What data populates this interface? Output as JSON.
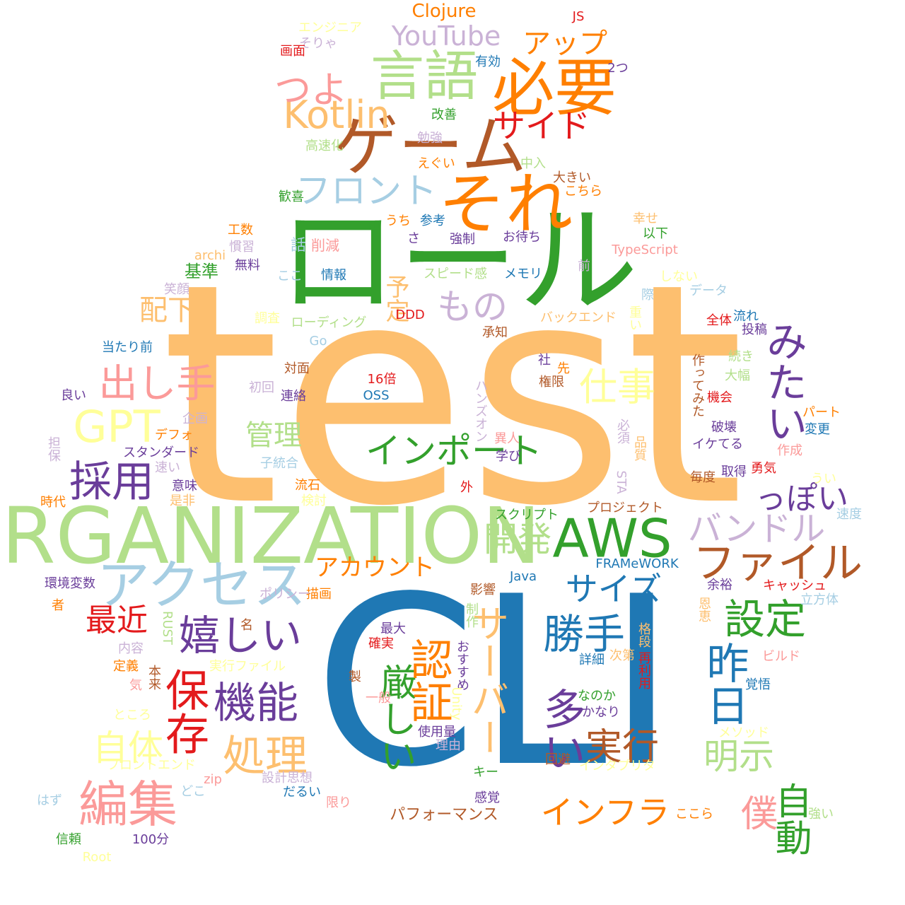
{
  "words": [
    {
      "text": "test",
      "color": "#fdbf6f"
    },
    {
      "text": "CLI",
      "color": "#1f78b4"
    },
    {
      "text": "ロール",
      "color": "#33a02c"
    },
    {
      "text": "ORGANIZATION",
      "color": "#b2df8a"
    },
    {
      "text": "それ",
      "color": "#ff7f00"
    },
    {
      "text": "ゲーム",
      "color": "#b15928"
    },
    {
      "text": "必要",
      "color": "#ff7f00"
    },
    {
      "text": "言語",
      "color": "#b2df8a"
    },
    {
      "text": "アクセス",
      "color": "#a6cee3"
    },
    {
      "text": "AWS",
      "color": "#33a02c"
    },
    {
      "text": "Kotlin",
      "color": "#fdbf6f"
    },
    {
      "text": "GPT",
      "color": "#ffff99"
    },
    {
      "text": "つよ",
      "color": "#fb9a99"
    },
    {
      "text": "サイド",
      "color": "#e31a1c"
    },
    {
      "text": "アップ",
      "color": "#ff7f00"
    },
    {
      "text": "YouTube",
      "color": "#cab2d6"
    },
    {
      "text": "Clojure",
      "color": "#ff7f00"
    },
    {
      "text": "フロント",
      "color": "#a6cee3"
    },
    {
      "text": "もの",
      "color": "#cab2d6"
    },
    {
      "text": "インポート",
      "color": "#33a02c"
    },
    {
      "text": "出し手",
      "color": "#fb9a99"
    },
    {
      "text": "採用",
      "color": "#6a3d9a"
    },
    {
      "text": "仕事",
      "color": "#ffff99"
    },
    {
      "text": "みたい",
      "color": "#6a3d9a"
    },
    {
      "text": "ファイル",
      "color": "#b15928"
    },
    {
      "text": "バンドル",
      "color": "#cab2d6"
    },
    {
      "text": "っぽい",
      "color": "#6a3d9a"
    },
    {
      "text": "開発",
      "color": "#b2df8a"
    },
    {
      "text": "サイズ",
      "color": "#1f78b4"
    },
    {
      "text": "設定",
      "color": "#33a02c"
    },
    {
      "text": "嬉しい",
      "color": "#6a3d9a"
    },
    {
      "text": "勝手",
      "color": "#1f78b4"
    },
    {
      "text": "保存",
      "color": "#e31a1c"
    },
    {
      "text": "機能",
      "color": "#6a3d9a"
    },
    {
      "text": "編集",
      "color": "#fb9a99"
    },
    {
      "text": "処理",
      "color": "#fdbf6f"
    },
    {
      "text": "自体",
      "color": "#ffff99"
    },
    {
      "text": "厳しい",
      "color": "#33a02c"
    },
    {
      "text": "認証",
      "color": "#ff7f00"
    },
    {
      "text": "サーバー",
      "color": "#fdbf6f"
    },
    {
      "text": "多い",
      "color": "#6a3d9a"
    },
    {
      "text": "実行",
      "color": "#b15928"
    },
    {
      "text": "昨日",
      "color": "#1f78b4"
    },
    {
      "text": "明示",
      "color": "#b2df8a"
    },
    {
      "text": "インフラ",
      "color": "#ff7f00"
    },
    {
      "text": "僕",
      "color": "#fb9a99"
    },
    {
      "text": "自動",
      "color": "#33a02c"
    },
    {
      "text": "最近",
      "color": "#e31a1c"
    },
    {
      "text": "アカウント",
      "color": "#ff7f00"
    },
    {
      "text": "管理",
      "color": "#b2df8a"
    },
    {
      "text": "配下",
      "color": "#fdbf6f"
    },
    {
      "text": "予定",
      "color": "#fdbf6f"
    },
    {
      "text": "基準",
      "color": "#33a02c"
    },
    {
      "text": "話",
      "color": "#a6cee3"
    },
    {
      "text": "削減",
      "color": "#fb9a99"
    },
    {
      "text": "中",
      "color": "#33a02c"
    },
    {
      "text": "うち",
      "color": "#ff7f00"
    },
    {
      "text": "参考",
      "color": "#1f78b4"
    },
    {
      "text": "さ",
      "color": "#6a3d9a"
    },
    {
      "text": "強制",
      "color": "#6a3d9a"
    },
    {
      "text": "お待ち",
      "color": "#6a3d9a"
    },
    {
      "text": "スピード感",
      "color": "#b2df8a"
    },
    {
      "text": "メモリ",
      "color": "#1f78b4"
    },
    {
      "text": "TypeScript",
      "color": "#fb9a99"
    },
    {
      "text": "前",
      "color": "#cab2d6"
    },
    {
      "text": "しない",
      "color": "#ffff99"
    },
    {
      "text": "データ",
      "color": "#a6cee3"
    },
    {
      "text": "際",
      "color": "#a6cee3"
    },
    {
      "text": "重い",
      "color": "#ffff99"
    },
    {
      "text": "全体",
      "color": "#e31a1c"
    },
    {
      "text": "流れ",
      "color": "#1f78b4"
    },
    {
      "text": "投稿",
      "color": "#6a3d9a"
    },
    {
      "text": "続き",
      "color": "#b2df8a"
    },
    {
      "text": "大幅",
      "color": "#b2df8a"
    },
    {
      "text": "機会",
      "color": "#e31a1c"
    },
    {
      "text": "作ってみた",
      "color": "#b15928"
    },
    {
      "text": "パート",
      "color": "#ff7f00"
    },
    {
      "text": "変更",
      "color": "#1f78b4"
    },
    {
      "text": "破壊",
      "color": "#6a3d9a"
    },
    {
      "text": "作成",
      "color": "#fb9a99"
    },
    {
      "text": "イケてる",
      "color": "#6a3d9a"
    },
    {
      "text": "うい",
      "color": "#ffff99"
    },
    {
      "text": "毎度",
      "color": "#b15928"
    },
    {
      "text": "勇気",
      "color": "#e31a1c"
    },
    {
      "text": "取得",
      "color": "#6a3d9a"
    },
    {
      "text": "速度",
      "color": "#a6cee3"
    },
    {
      "text": "ローディング",
      "color": "#b2df8a"
    },
    {
      "text": "バックエンド",
      "color": "#fdbf6f"
    },
    {
      "text": "DDD",
      "color": "#e31a1c"
    },
    {
      "text": "承知",
      "color": "#b15928"
    },
    {
      "text": "Go",
      "color": "#a6cee3"
    },
    {
      "text": "調査",
      "color": "#ffff99"
    },
    {
      "text": "笑顔",
      "color": "#cab2d6"
    },
    {
      "text": "ここ",
      "color": "#a6cee3"
    },
    {
      "text": "情報",
      "color": "#1f78b4"
    },
    {
      "text": "archi",
      "color": "#fdbf6f"
    },
    {
      "text": "慣習",
      "color": "#cab2d6"
    },
    {
      "text": "工数",
      "color": "#ff7f00"
    },
    {
      "text": "無料",
      "color": "#6a3d9a"
    },
    {
      "text": "歓喜",
      "color": "#33a02c"
    },
    {
      "text": "当たり前",
      "color": "#1f78b4"
    },
    {
      "text": "16倍",
      "color": "#e31a1c"
    },
    {
      "text": "OSS",
      "color": "#1f78b4"
    },
    {
      "text": "初回",
      "color": "#cab2d6"
    },
    {
      "text": "対面",
      "color": "#b15928"
    },
    {
      "text": "連絡",
      "color": "#6a3d9a"
    },
    {
      "text": "ハンズオン",
      "color": "#cab2d6"
    },
    {
      "text": "社",
      "color": "#6a3d9a"
    },
    {
      "text": "先",
      "color": "#ff7f00"
    },
    {
      "text": "権限",
      "color": "#b15928"
    },
    {
      "text": "良い",
      "color": "#6a3d9a"
    },
    {
      "text": "企画",
      "color": "#cab2d6"
    },
    {
      "text": "デフォ",
      "color": "#ff7f00"
    },
    {
      "text": "担保",
      "color": "#cab2d6"
    },
    {
      "text": "スタンダード",
      "color": "#6a3d9a"
    },
    {
      "text": "子統合",
      "color": "#a6cee3"
    },
    {
      "text": "速い",
      "color": "#cab2d6"
    },
    {
      "text": "意味",
      "color": "#6a3d9a"
    },
    {
      "text": "流石",
      "color": "#ff7f00"
    },
    {
      "text": "検討",
      "color": "#ffff99"
    },
    {
      "text": "時代",
      "color": "#ff7f00"
    },
    {
      "text": "是非",
      "color": "#fdbf6f"
    },
    {
      "text": "異人",
      "color": "#fb9a99"
    },
    {
      "text": "学び",
      "color": "#6a3d9a"
    },
    {
      "text": "外",
      "color": "#e31a1c"
    },
    {
      "text": "必須",
      "color": "#cab2d6"
    },
    {
      "text": "品質",
      "color": "#fdbf6f"
    },
    {
      "text": "STA",
      "color": "#cab2d6"
    },
    {
      "text": "スクリプト",
      "color": "#33a02c"
    },
    {
      "text": "プロジェクト",
      "color": "#b15928"
    },
    {
      "text": "FRAMeWORK",
      "color": "#1f78b4"
    },
    {
      "text": "Java",
      "color": "#1f78b4"
    },
    {
      "text": "余裕",
      "color": "#6a3d9a"
    },
    {
      "text": "キャッシュ",
      "color": "#e31a1c"
    },
    {
      "text": "立方体",
      "color": "#a6cee3"
    },
    {
      "text": "恩恵",
      "color": "#fdbf6f"
    },
    {
      "text": "影響",
      "color": "#b15928"
    },
    {
      "text": "制作",
      "color": "#b2df8a"
    },
    {
      "text": "格段",
      "color": "#fdbf6f"
    },
    {
      "text": "最大",
      "color": "#6a3d9a"
    },
    {
      "text": "確実",
      "color": "#e31a1c"
    },
    {
      "text": "おすすめ",
      "color": "#6a3d9a"
    },
    {
      "text": "次第",
      "color": "#fdbf6f"
    },
    {
      "text": "詳細",
      "color": "#1f78b4"
    },
    {
      "text": "再利用",
      "color": "#e31a1c"
    },
    {
      "text": "ビルド",
      "color": "#fb9a99"
    },
    {
      "text": "覚悟",
      "color": "#1f78b4"
    },
    {
      "text": "環境変数",
      "color": "#6a3d9a"
    },
    {
      "text": "者",
      "color": "#ff7f00"
    },
    {
      "text": "描画",
      "color": "#ff7f00"
    },
    {
      "text": "ポリシー",
      "color": "#cab2d6"
    },
    {
      "text": "名",
      "color": "#b15928"
    },
    {
      "text": "RUST",
      "color": "#b2df8a"
    },
    {
      "text": "内容",
      "color": "#cab2d6"
    },
    {
      "text": "定義",
      "color": "#ff7f00"
    },
    {
      "text": "本来",
      "color": "#b15928"
    },
    {
      "text": "実行ファイル",
      "color": "#ffff99"
    },
    {
      "text": "気",
      "color": "#fb9a99"
    },
    {
      "text": "製",
      "color": "#b15928"
    },
    {
      "text": "一般",
      "color": "#fb9a99"
    },
    {
      "text": "Unity",
      "color": "#ffff99"
    },
    {
      "text": "なのか",
      "color": "#33a02c"
    },
    {
      "text": "かなり",
      "color": "#6a3d9a"
    },
    {
      "text": "ところ",
      "color": "#ffff99"
    },
    {
      "text": "使用量",
      "color": "#6a3d9a"
    },
    {
      "text": "理由",
      "color": "#cab2d6"
    },
    {
      "text": "メソッド",
      "color": "#ffff99"
    },
    {
      "text": "フロントエンド",
      "color": "#ffff99"
    },
    {
      "text": "設計思想",
      "color": "#cab2d6"
    },
    {
      "text": "zip",
      "color": "#fb9a99"
    },
    {
      "text": "どこ",
      "color": "#a6cee3"
    },
    {
      "text": "だるい",
      "color": "#1f78b4"
    },
    {
      "text": "キー",
      "color": "#33a02c"
    },
    {
      "text": "回避",
      "color": "#b15928"
    },
    {
      "text": "インタプリタ",
      "color": "#ffff99"
    },
    {
      "text": "感覚",
      "color": "#6a3d9a"
    },
    {
      "text": "限り",
      "color": "#fb9a99"
    },
    {
      "text": "はず",
      "color": "#a6cee3"
    },
    {
      "text": "パフォーマンス",
      "color": "#b15928"
    },
    {
      "text": "ここら",
      "color": "#ff7f00"
    },
    {
      "text": "強い",
      "color": "#b2df8a"
    },
    {
      "text": "信頼",
      "color": "#33a02c"
    },
    {
      "text": "100分",
      "color": "#6a3d9a"
    },
    {
      "text": "Root",
      "color": "#ffff99"
    },
    {
      "text": "エンジニア",
      "color": "#ffff99"
    },
    {
      "text": "そりゃ",
      "color": "#cab2d6"
    },
    {
      "text": "画面",
      "color": "#e31a1c"
    },
    {
      "text": "有効",
      "color": "#1f78b4"
    },
    {
      "text": "JS",
      "color": "#e31a1c"
    },
    {
      "text": "2つ",
      "color": "#6a3d9a"
    },
    {
      "text": "改善",
      "color": "#33a02c"
    },
    {
      "text": "勉強",
      "color": "#cab2d6"
    },
    {
      "text": "高速化",
      "color": "#b2df8a"
    },
    {
      "text": "えぐい",
      "color": "#ff7f00"
    },
    {
      "text": "中入",
      "color": "#b2df8a"
    },
    {
      "text": "大きい",
      "color": "#b15928"
    },
    {
      "text": "こちら",
      "color": "#ff7f00"
    },
    {
      "text": "幸せ",
      "color": "#fdbf6f"
    },
    {
      "text": "以下",
      "color": "#33a02c"
    }
  ]
}
